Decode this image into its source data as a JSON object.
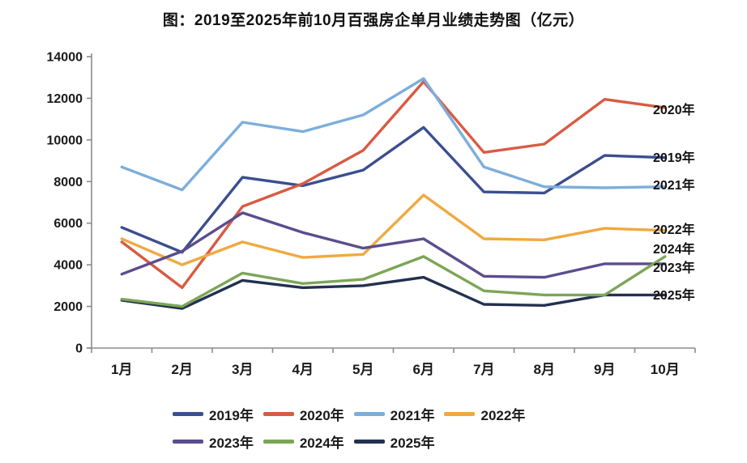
{
  "chart_data": {
    "type": "line",
    "title": "图：2019至2025年前10月百强房企单月业绩走势图（亿元）",
    "unit": "亿元",
    "categories": [
      "1月",
      "2月",
      "3月",
      "4月",
      "5月",
      "6月",
      "7月",
      "8月",
      "9月",
      "10月"
    ],
    "ylim": [
      0,
      14000
    ],
    "yticks": [
      0,
      2000,
      4000,
      6000,
      8000,
      10000,
      12000,
      14000
    ],
    "grid": false,
    "legend_position": "bottom",
    "axis_color": "#8c8c8c",
    "tick_label_color": "#1a1a1a",
    "series": [
      {
        "name": "2019年",
        "color": "#3B4E8F",
        "values": [
          5800,
          4600,
          8200,
          7800,
          8550,
          10600,
          7500,
          7450,
          9250,
          9150
        ],
        "end_label_y": 9180
      },
      {
        "name": "2020年",
        "color": "#D85B42",
        "values": [
          5100,
          2900,
          6800,
          7900,
          9500,
          12800,
          9400,
          9800,
          11950,
          11550
        ],
        "end_label_y": 11470
      },
      {
        "name": "2021年",
        "color": "#7CAEDC",
        "values": [
          8700,
          7600,
          10850,
          10400,
          11200,
          12950,
          8700,
          7750,
          7700,
          7750
        ],
        "end_label_y": 7850
      },
      {
        "name": "2022年",
        "color": "#F0A93F",
        "values": [
          5250,
          4000,
          5100,
          4350,
          4500,
          7350,
          5250,
          5200,
          5750,
          5650
        ],
        "end_label_y": 5715
      },
      {
        "name": "2023年",
        "color": "#5B4D8E",
        "values": [
          3550,
          4650,
          6500,
          5550,
          4800,
          5250,
          3450,
          3400,
          4050,
          4050
        ],
        "end_label_y": 3890
      },
      {
        "name": "2024年",
        "color": "#7CA656",
        "values": [
          2350,
          2000,
          3600,
          3100,
          3300,
          4400,
          2750,
          2550,
          2550,
          4400
        ],
        "end_label_y": 4780
      },
      {
        "name": "2025年",
        "color": "#233050",
        "values": [
          2300,
          1900,
          3250,
          2900,
          3000,
          3400,
          2100,
          2050,
          2550,
          2550
        ],
        "end_label_y": 2570
      }
    ],
    "legend_rows": [
      [
        "2019年",
        "2020年",
        "2021年",
        "2022年"
      ],
      [
        "2023年",
        "2024年",
        "2025年"
      ]
    ],
    "draw_order": [
      "2019年",
      "2020年",
      "2021年",
      "2022年",
      "2023年",
      "2025年",
      "2024年"
    ]
  }
}
